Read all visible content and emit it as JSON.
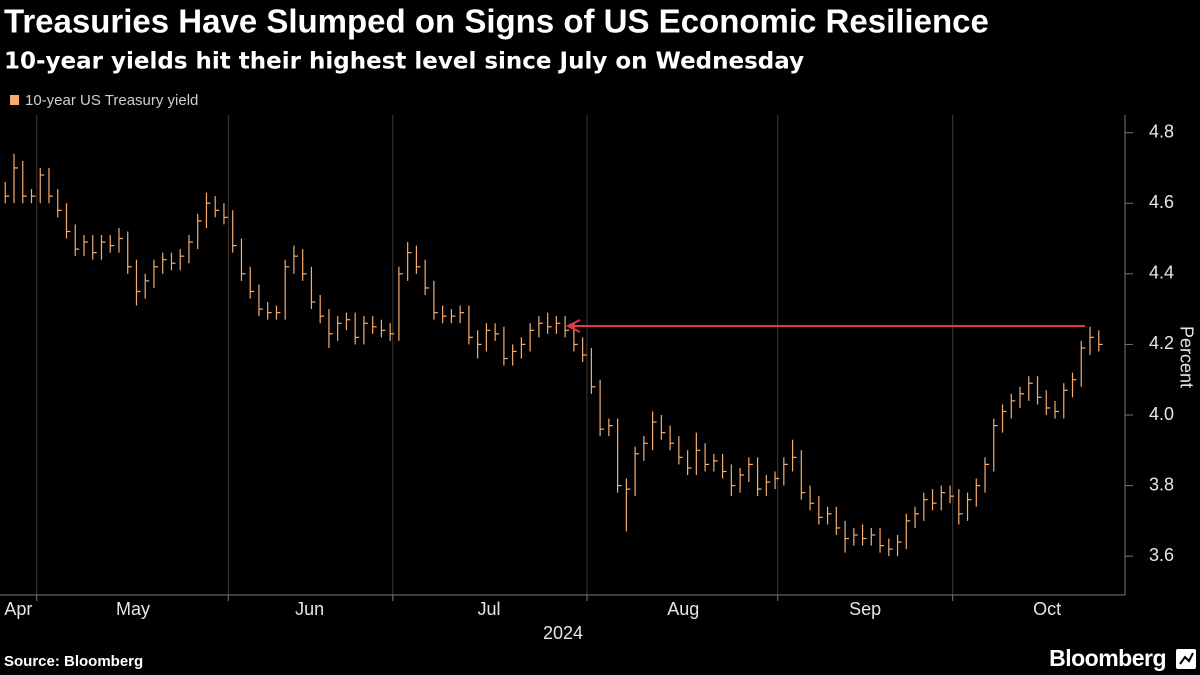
{
  "chart_data": {
    "type": "hlc",
    "title": "Treasuries Have Slumped on Signs of US Economic Resilience",
    "subtitle": "10-year yields hit their highest level since July on Wednesday",
    "source": "Source: Bloomberg",
    "brand": "Bloomberg",
    "y_label": "Percent",
    "x_label": "2024",
    "categories": [
      null,
      null,
      null,
      null,
      null,
      null,
      null,
      null,
      null,
      null,
      null,
      null,
      null,
      null,
      null,
      null,
      null,
      null,
      null,
      null,
      null,
      null,
      null,
      null,
      null,
      null,
      null,
      null,
      null,
      null,
      null,
      null,
      null,
      null,
      null,
      null,
      null,
      null,
      null,
      null,
      null,
      null,
      null,
      null,
      null,
      null,
      null,
      null,
      null,
      null,
      null,
      null,
      null,
      null,
      null,
      null,
      null,
      null,
      null,
      null,
      null,
      null,
      null,
      null,
      null,
      null,
      null,
      null,
      null,
      null,
      null,
      null,
      null,
      null,
      null,
      null,
      null,
      null,
      null,
      null,
      null,
      null,
      null,
      null,
      null,
      null,
      null,
      null,
      null,
      null,
      null,
      null,
      null,
      null,
      null,
      null,
      null,
      null,
      null,
      null,
      null,
      null,
      null,
      null,
      null,
      null,
      null,
      null,
      null,
      null,
      null,
      null,
      null,
      null,
      null,
      null,
      null,
      null,
      null,
      null,
      null,
      null,
      null,
      null,
      null,
      null
    ],
    "series": [
      {
        "name": "10-year US Treasury yield",
        "color": "#f6ad6f",
        "high": [
          4.66,
          4.74,
          4.72,
          4.64,
          4.7,
          4.7,
          4.64,
          4.6,
          4.54,
          4.51,
          4.51,
          4.51,
          4.51,
          4.53,
          4.52,
          4.44,
          4.4,
          4.44,
          4.46,
          4.46,
          4.47,
          4.51,
          4.57,
          4.63,
          4.62,
          4.6,
          4.58,
          4.5,
          4.42,
          4.37,
          4.32,
          4.31,
          4.44,
          4.48,
          4.47,
          4.42,
          4.34,
          4.3,
          4.28,
          4.29,
          4.29,
          4.28,
          4.28,
          4.27,
          4.26,
          4.42,
          4.49,
          4.48,
          4.44,
          4.38,
          4.31,
          4.3,
          4.31,
          4.31,
          4.24,
          4.26,
          4.26,
          4.25,
          4.2,
          4.22,
          4.26,
          4.28,
          4.29,
          4.28,
          4.28,
          4.26,
          4.22,
          4.19,
          4.1,
          3.99,
          3.99,
          3.82,
          3.91,
          3.94,
          4.01,
          4.0,
          3.97,
          3.94,
          3.9,
          3.95,
          3.92,
          3.89,
          3.89,
          3.86,
          3.85,
          3.88,
          3.88,
          3.83,
          3.84,
          3.88,
          3.93,
          3.9,
          3.8,
          3.77,
          3.74,
          3.74,
          3.7,
          3.68,
          3.69,
          3.68,
          3.68,
          3.65,
          3.66,
          3.72,
          3.74,
          3.78,
          3.79,
          3.8,
          3.8,
          3.79,
          3.78,
          3.82,
          3.88,
          3.99,
          4.03,
          4.06,
          4.08,
          4.11,
          4.11,
          4.07,
          4.04,
          4.09,
          4.12,
          4.21,
          4.25,
          4.24
        ],
        "low": [
          4.6,
          4.6,
          4.6,
          4.6,
          4.6,
          4.6,
          4.56,
          4.5,
          4.45,
          4.45,
          4.44,
          4.44,
          4.46,
          4.46,
          4.4,
          4.31,
          4.33,
          4.36,
          4.4,
          4.41,
          4.41,
          4.43,
          4.47,
          4.53,
          4.56,
          4.54,
          4.46,
          4.38,
          4.33,
          4.28,
          4.27,
          4.27,
          4.27,
          4.4,
          4.38,
          4.3,
          4.26,
          4.19,
          4.21,
          4.24,
          4.2,
          4.2,
          4.23,
          4.22,
          4.21,
          4.21,
          4.38,
          4.4,
          4.34,
          4.27,
          4.26,
          4.26,
          4.26,
          4.2,
          4.16,
          4.18,
          4.21,
          4.14,
          4.14,
          4.16,
          4.18,
          4.22,
          4.23,
          4.23,
          4.22,
          4.18,
          4.15,
          4.06,
          3.94,
          3.94,
          3.78,
          3.67,
          3.77,
          3.87,
          3.9,
          3.93,
          3.9,
          3.86,
          3.83,
          3.83,
          3.84,
          3.84,
          3.82,
          3.77,
          3.78,
          3.81,
          3.77,
          3.77,
          3.79,
          3.8,
          3.84,
          3.76,
          3.73,
          3.69,
          3.69,
          3.66,
          3.61,
          3.63,
          3.63,
          3.63,
          3.61,
          3.6,
          3.6,
          3.62,
          3.68,
          3.7,
          3.73,
          3.73,
          3.75,
          3.69,
          3.7,
          3.74,
          3.78,
          3.84,
          3.95,
          3.99,
          4.02,
          4.04,
          4.03,
          4.0,
          3.99,
          3.99,
          4.05,
          4.08,
          4.17,
          4.18
        ],
        "close": [
          4.62,
          4.7,
          4.62,
          4.62,
          4.68,
          4.62,
          4.58,
          4.52,
          4.47,
          4.49,
          4.46,
          4.49,
          4.48,
          4.5,
          4.42,
          4.35,
          4.38,
          4.42,
          4.44,
          4.43,
          4.45,
          4.49,
          4.55,
          4.6,
          4.58,
          4.56,
          4.48,
          4.4,
          4.35,
          4.3,
          4.29,
          4.29,
          4.42,
          4.45,
          4.4,
          4.32,
          4.28,
          4.23,
          4.26,
          4.27,
          4.22,
          4.26,
          4.25,
          4.24,
          4.23,
          4.4,
          4.46,
          4.42,
          4.36,
          4.29,
          4.28,
          4.28,
          4.29,
          4.22,
          4.2,
          4.24,
          4.23,
          4.16,
          4.18,
          4.2,
          4.24,
          4.26,
          4.25,
          4.26,
          4.24,
          4.2,
          4.17,
          4.08,
          3.96,
          3.97,
          3.8,
          3.79,
          3.89,
          3.92,
          3.98,
          3.95,
          3.92,
          3.88,
          3.85,
          3.9,
          3.86,
          3.87,
          3.84,
          3.8,
          3.83,
          3.86,
          3.79,
          3.81,
          3.82,
          3.86,
          3.88,
          3.78,
          3.75,
          3.71,
          3.72,
          3.68,
          3.65,
          3.66,
          3.65,
          3.66,
          3.63,
          3.62,
          3.64,
          3.7,
          3.72,
          3.76,
          3.75,
          3.78,
          3.77,
          3.72,
          3.76,
          3.8,
          3.86,
          3.97,
          4.01,
          4.04,
          4.06,
          4.09,
          4.05,
          4.02,
          4.01,
          4.07,
          4.1,
          4.19,
          4.22,
          4.2
        ]
      }
    ],
    "xlim": [
      -0.6,
      128
    ],
    "xticks": [
      {
        "value": 1.5,
        "label": "Apr"
      },
      {
        "value": 14.6,
        "label": "May"
      },
      {
        "value": 34.8,
        "label": "Jun"
      },
      {
        "value": 55.3,
        "label": "Jul"
      },
      {
        "value": 77.5,
        "label": "Aug"
      },
      {
        "value": 98.3,
        "label": "Sep"
      },
      {
        "value": 119.1,
        "label": "Oct"
      }
    ],
    "xgrid": [
      3.6,
      25.5,
      44.3,
      66.5,
      88.3,
      108.3
    ],
    "ylim": [
      3.49,
      4.85
    ],
    "yticks": [
      3.6,
      3.8,
      {
        "value": 4,
        "label": "4.0"
      },
      4.2,
      4.4,
      4.6,
      4.8
    ],
    "y_axis_side": "right",
    "grid": "x"
  }
}
